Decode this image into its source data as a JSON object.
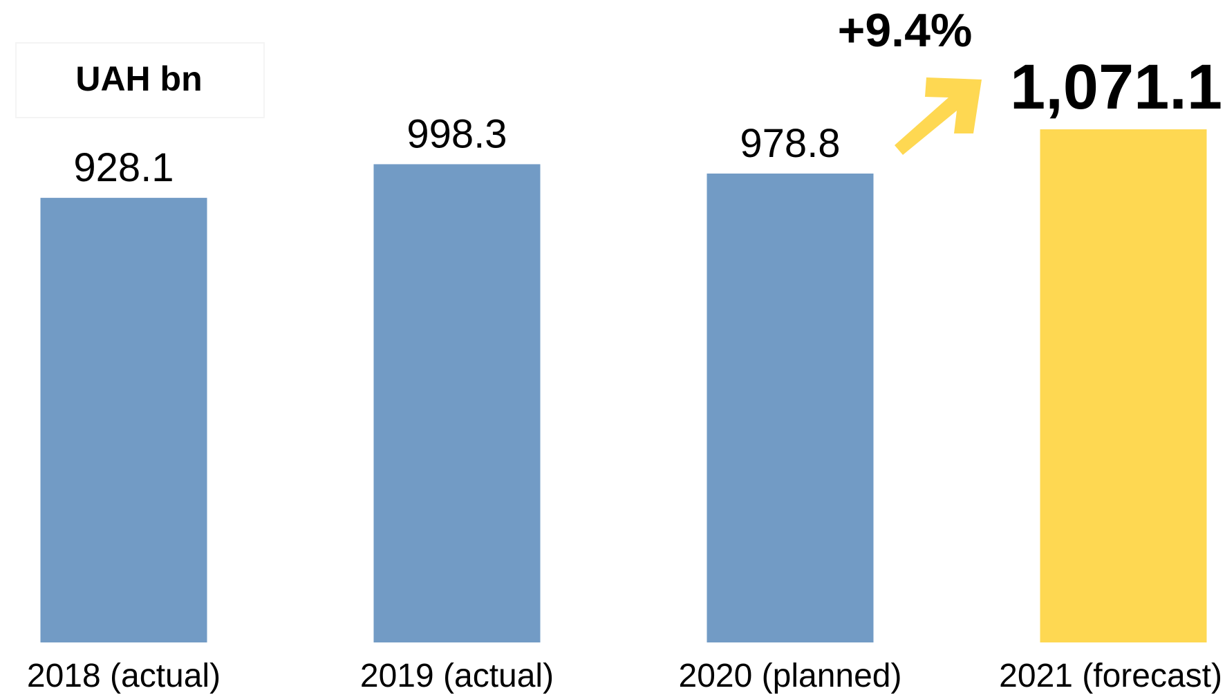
{
  "chart_data": {
    "type": "bar",
    "y_label": "UAH bn",
    "annotation": "+9.4%",
    "categories": [
      "2018 (actual)",
      "2019 (actual)",
      "2020 (planned)",
      "2021 (forecast)"
    ],
    "values": [
      928.1,
      998.3,
      978.8,
      1071.1
    ],
    "value_labels": [
      "928.1",
      "998.3",
      "978.8",
      "1,071.1"
    ],
    "colors": [
      "#729bc5",
      "#729bc5",
      "#729bc5",
      "#fed852"
    ],
    "ylim": [
      0,
      1100
    ]
  }
}
